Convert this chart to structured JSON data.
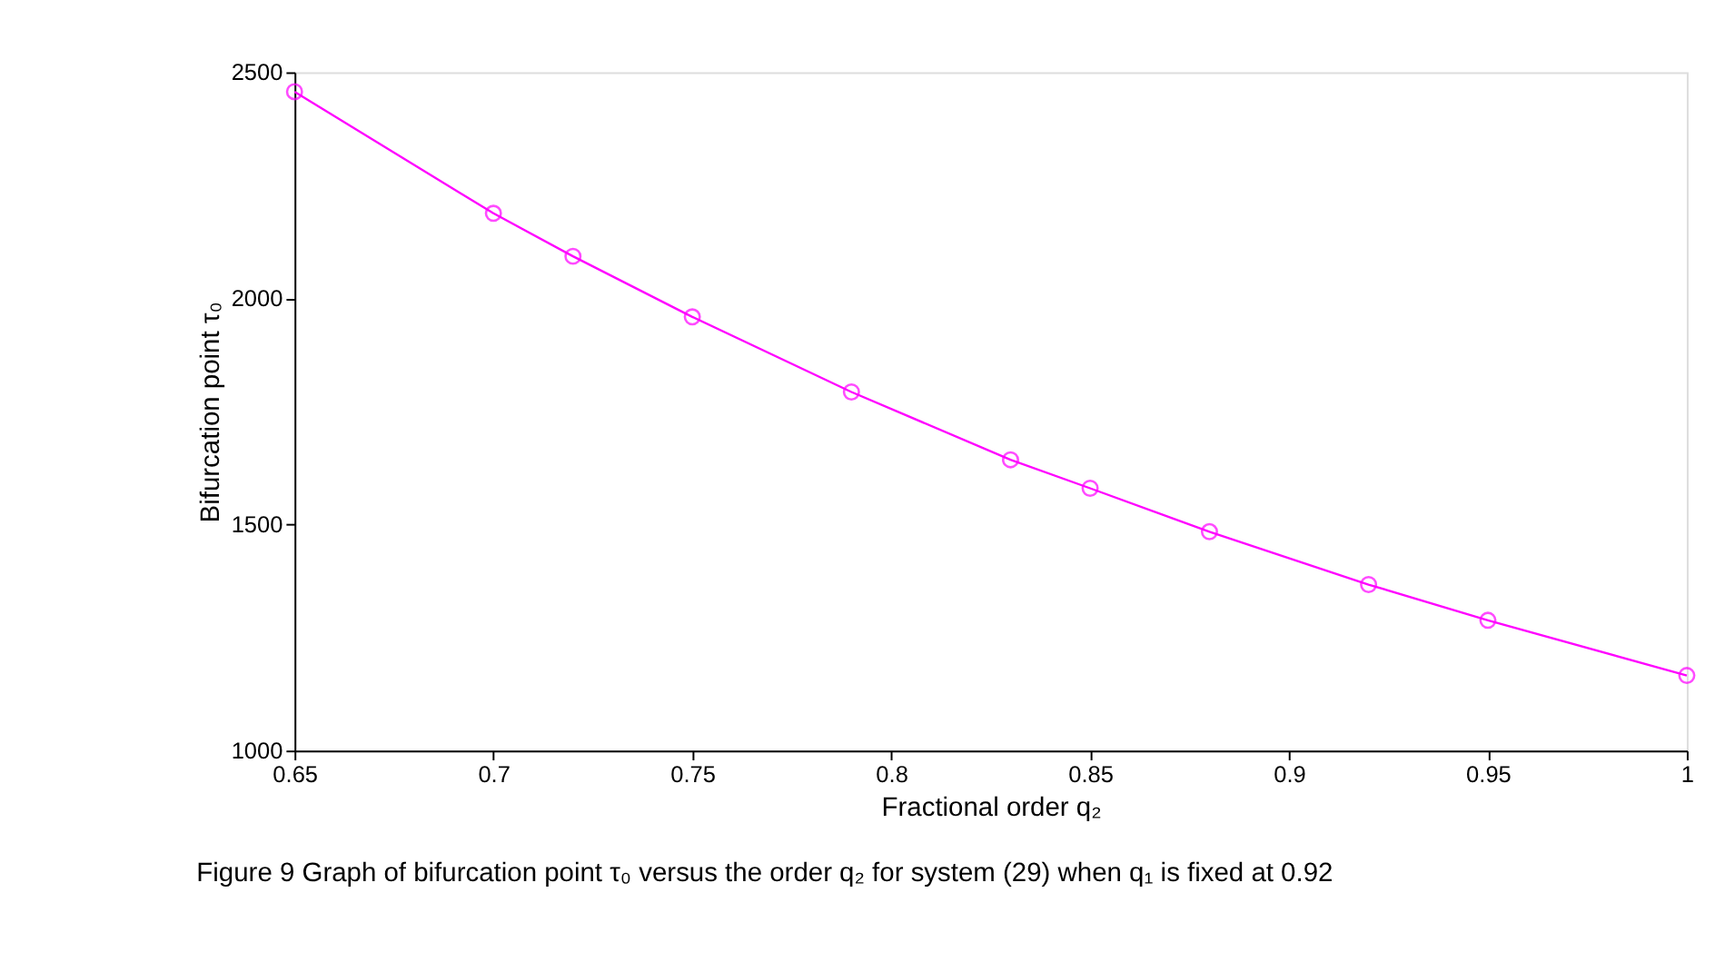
{
  "chart_data": {
    "type": "line",
    "xlabel": "Fractional order q₂",
    "ylabel": "Bifurcation point τ₀",
    "annotations": [
      "Figure 9  Graph of bifurcation point τ₀ versus the order q₂ for system (29) when q₁ is fixed at 0.92"
    ],
    "x": [
      0.65,
      0.7,
      0.72,
      0.75,
      0.79,
      0.83,
      0.85,
      0.88,
      0.92,
      0.95,
      1.0
    ],
    "series": [
      {
        "color": "#ff00ff",
        "values": [
          2457,
          2188,
          2093,
          1959,
          1793,
          1643,
          1580,
          1484,
          1367,
          1288,
          1166
        ]
      }
    ],
    "xlim": [
      0.65,
      1
    ],
    "xticks": [
      0.65,
      0.7,
      0.75,
      0.8,
      0.85,
      0.9,
      0.95,
      1
    ],
    "ylim": [
      1000,
      2500
    ],
    "yticks": [
      1000,
      1500,
      2000,
      2500
    ],
    "grid": false,
    "marker": "circle",
    "line_style": "solid"
  }
}
